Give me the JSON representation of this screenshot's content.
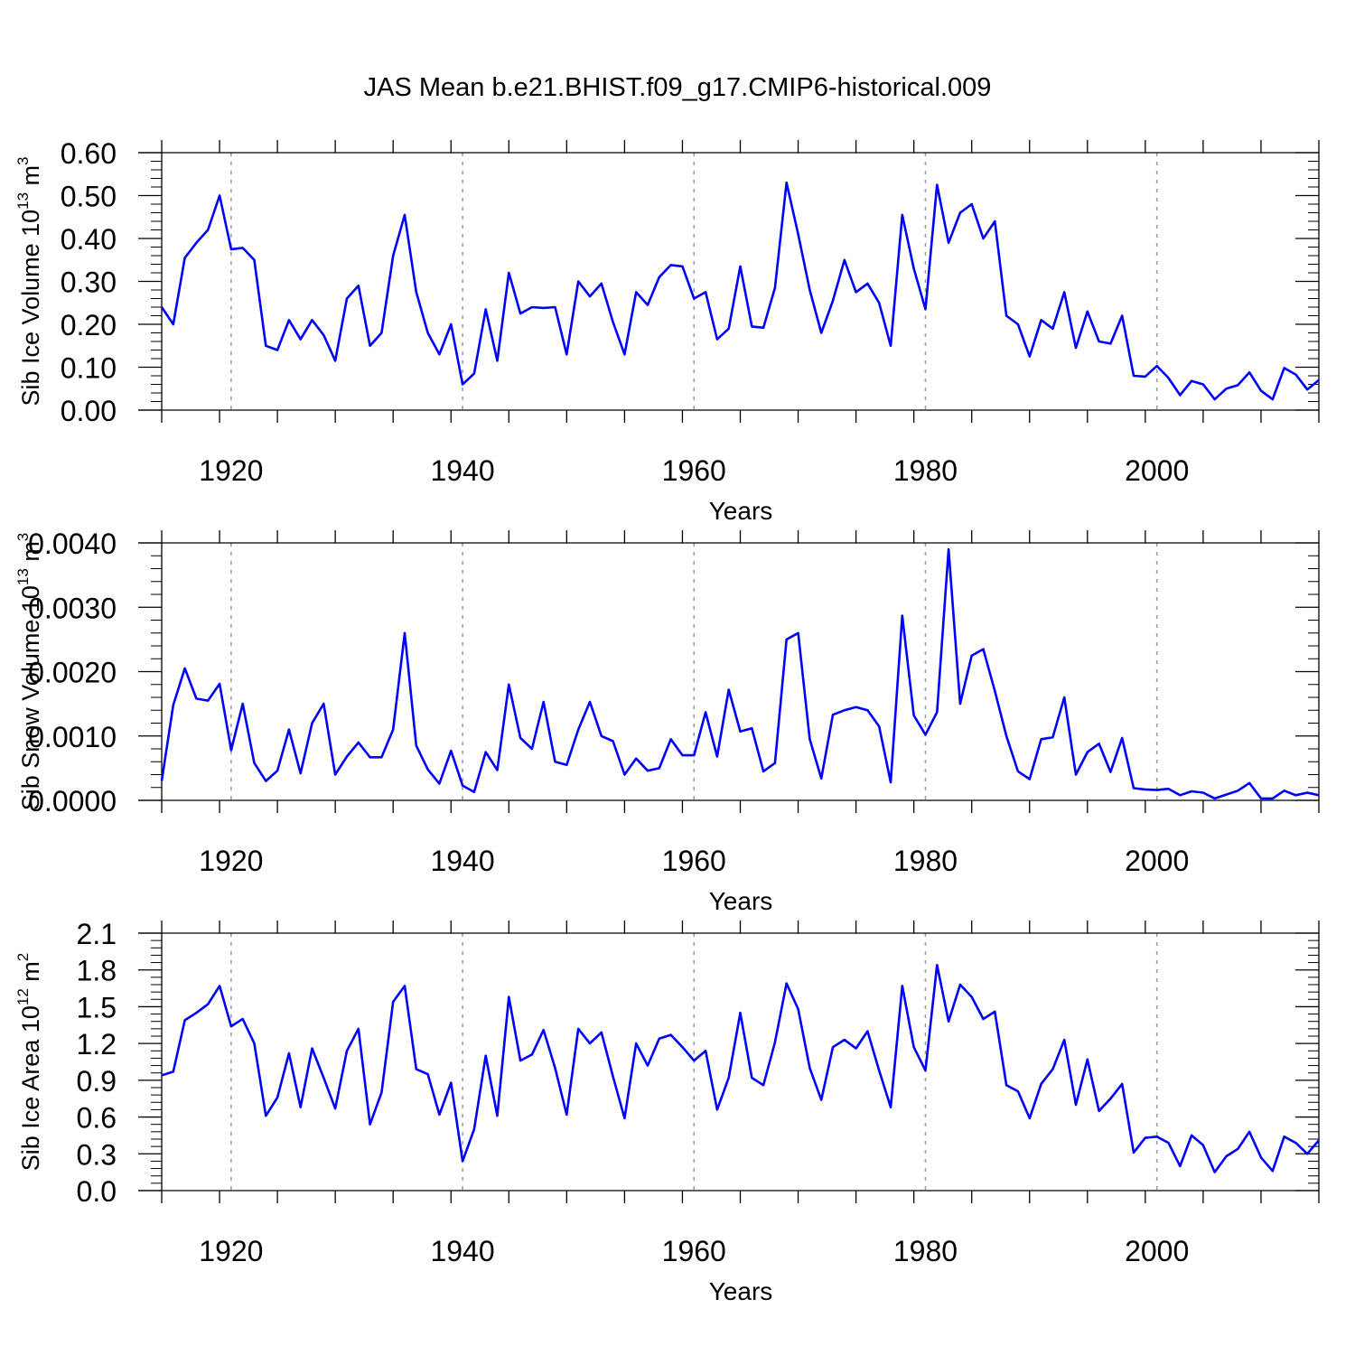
{
  "title": "JAS Mean b.e21.BHIST.f09_g17.CMIP6-historical.009",
  "colors": {
    "line": "#0000ff",
    "axis": "#000000",
    "grid": "#999999"
  },
  "chart_data": [
    {
      "type": "line",
      "ylabel": "Sib Ice Volume 10",
      "ylabel_exp": "13",
      "ylabel_unit": " m",
      "ylabel_unit_exp": "3",
      "xlabel": "Years",
      "xlim": [
        1914,
        2014
      ],
      "ylim": [
        0,
        0.6
      ],
      "yticks": [
        "0.00",
        "0.10",
        "0.20",
        "0.30",
        "0.40",
        "0.50",
        "0.60"
      ],
      "xticks": [
        "1920",
        "1940",
        "1960",
        "1980",
        "2000"
      ],
      "x_start": 1914,
      "values": [
        0.24,
        0.2,
        0.355,
        0.39,
        0.42,
        0.5,
        0.375,
        0.378,
        0.35,
        0.15,
        0.14,
        0.21,
        0.165,
        0.21,
        0.175,
        0.115,
        0.26,
        0.29,
        0.15,
        0.18,
        0.36,
        0.455,
        0.275,
        0.18,
        0.13,
        0.2,
        0.06,
        0.085,
        0.235,
        0.115,
        0.32,
        0.225,
        0.24,
        0.238,
        0.24,
        0.13,
        0.3,
        0.265,
        0.295,
        0.205,
        0.13,
        0.275,
        0.245,
        0.31,
        0.338,
        0.335,
        0.26,
        0.275,
        0.165,
        0.19,
        0.335,
        0.195,
        0.192,
        0.285,
        0.53,
        0.41,
        0.28,
        0.18,
        0.255,
        0.35,
        0.275,
        0.295,
        0.25,
        0.15,
        0.455,
        0.33,
        0.235,
        0.525,
        0.39,
        0.46,
        0.48,
        0.4,
        0.44,
        0.22,
        0.2,
        0.125,
        0.21,
        0.19,
        0.275,
        0.145,
        0.23,
        0.16,
        0.155,
        0.22,
        0.08,
        0.078,
        0.103,
        0.075,
        0.035,
        0.068,
        0.06,
        0.025,
        0.05,
        0.058,
        0.088,
        0.045,
        0.025,
        0.098,
        0.083,
        0.048,
        0.07
      ]
    },
    {
      "type": "line",
      "ylabel": "Sib Snow Volume 10",
      "ylabel_exp": "13",
      "ylabel_unit": " m",
      "ylabel_unit_exp": "3",
      "xlabel": "Years",
      "xlim": [
        1914,
        2014
      ],
      "ylim": [
        0,
        0.004
      ],
      "yticks": [
        "0.0000",
        "0.0010",
        "0.0020",
        "0.0030",
        "0.0040"
      ],
      "xticks": [
        "1920",
        "1940",
        "1960",
        "1980",
        "2000"
      ],
      "x_start": 1914,
      "values": [
        0.0003,
        0.00148,
        0.00205,
        0.00158,
        0.00155,
        0.00181,
        0.00078,
        0.0015,
        0.00058,
        0.0003,
        0.00046,
        0.0011,
        0.00042,
        0.0012,
        0.0015,
        0.0004,
        0.00068,
        0.0009,
        0.00067,
        0.00067,
        0.0011,
        0.0026,
        0.00085,
        0.00048,
        0.00026,
        0.00077,
        0.00023,
        0.00013,
        0.00075,
        0.00047,
        0.0018,
        0.00097,
        0.0008,
        0.00153,
        0.0006,
        0.00055,
        0.0011,
        0.00153,
        0.001,
        0.00092,
        0.0004,
        0.00065,
        0.00046,
        0.0005,
        0.00095,
        0.0007,
        0.0007,
        0.00137,
        0.00068,
        0.00172,
        0.00107,
        0.00112,
        0.00045,
        0.00058,
        0.0025,
        0.0026,
        0.00095,
        0.00034,
        0.00133,
        0.0014,
        0.00145,
        0.0014,
        0.00115,
        0.00028,
        0.00287,
        0.00132,
        0.00102,
        0.00137,
        0.0039,
        0.0015,
        0.00225,
        0.00235,
        0.0017,
        0.001,
        0.00045,
        0.00033,
        0.00095,
        0.00098,
        0.0016,
        0.0004,
        0.00075,
        0.00088,
        0.00044,
        0.00097,
        0.00019,
        0.00017,
        0.00016,
        0.00018,
        8e-05,
        0.00014,
        0.00012,
        3e-05,
        9e-05,
        0.00015,
        0.00027,
        3e-05,
        3e-05,
        0.00015,
        8e-05,
        0.00012,
        8e-05
      ]
    },
    {
      "type": "line",
      "ylabel": "Sib Ice Area 10",
      "ylabel_exp": "12",
      "ylabel_unit": " m",
      "ylabel_unit_exp": "2",
      "xlabel": "Years",
      "xlim": [
        1914,
        2014
      ],
      "ylim": [
        0,
        2.1
      ],
      "yticks": [
        "0.0",
        "0.3",
        "0.6",
        "0.9",
        "1.2",
        "1.5",
        "1.8",
        "2.1"
      ],
      "xticks": [
        "1920",
        "1940",
        "1960",
        "1980",
        "2000"
      ],
      "x_start": 1914,
      "values": [
        0.94,
        0.97,
        1.39,
        1.45,
        1.52,
        1.67,
        1.34,
        1.4,
        1.2,
        0.61,
        0.76,
        1.12,
        0.68,
        1.16,
        0.92,
        0.67,
        1.14,
        1.32,
        0.54,
        0.8,
        1.54,
        1.67,
        0.99,
        0.95,
        0.62,
        0.88,
        0.24,
        0.5,
        1.1,
        0.61,
        1.58,
        1.06,
        1.11,
        1.31,
        1.0,
        0.62,
        1.32,
        1.2,
        1.29,
        0.93,
        0.59,
        1.2,
        1.02,
        1.24,
        1.27,
        1.17,
        1.06,
        1.14,
        0.66,
        0.92,
        1.45,
        0.92,
        0.86,
        1.21,
        1.69,
        1.48,
        1.0,
        0.74,
        1.17,
        1.23,
        1.16,
        1.3,
        0.98,
        0.68,
        1.67,
        1.17,
        0.98,
        1.84,
        1.38,
        1.68,
        1.58,
        1.4,
        1.46,
        0.86,
        0.81,
        0.59,
        0.87,
        0.99,
        1.23,
        0.7,
        1.07,
        0.65,
        0.75,
        0.87,
        0.31,
        0.43,
        0.44,
        0.39,
        0.2,
        0.45,
        0.37,
        0.15,
        0.28,
        0.34,
        0.48,
        0.27,
        0.16,
        0.44,
        0.39,
        0.3,
        0.41
      ]
    }
  ]
}
